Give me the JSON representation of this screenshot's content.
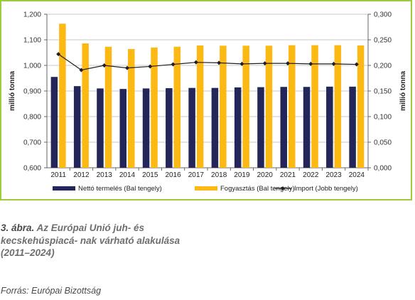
{
  "chart_data": {
    "type": "bar",
    "categories": [
      "2011",
      "2012",
      "2013",
      "2014",
      "2015",
      "2016",
      "2017",
      "2018",
      "2019",
      "2020",
      "2021",
      "2022",
      "2023",
      "2024"
    ],
    "series": [
      {
        "name": "Nettó termelés (Bal tengely)",
        "type": "bar",
        "axis": "left",
        "color": "#24265a",
        "values": [
          0.955,
          0.919,
          0.91,
          0.908,
          0.91,
          0.911,
          0.912,
          0.912,
          0.914,
          0.915,
          0.916,
          0.916,
          0.917,
          0.917
        ]
      },
      {
        "name": "Fogyasztás (Bal tengely)",
        "type": "bar",
        "axis": "left",
        "color": "#fdb913",
        "values": [
          1.163,
          1.086,
          1.073,
          1.064,
          1.07,
          1.073,
          1.078,
          1.077,
          1.077,
          1.077,
          1.079,
          1.079,
          1.079,
          1.078
        ]
      },
      {
        "name": "Import (Jobb tengely)",
        "type": "line",
        "axis": "right",
        "color": "#1f1f1f",
        "values": [
          0.222,
          0.191,
          0.2,
          0.195,
          0.198,
          0.202,
          0.206,
          0.205,
          0.203,
          0.204,
          0.204,
          0.203,
          0.203,
          0.202
        ]
      }
    ],
    "y_left": {
      "label": "millió tonna",
      "min": 0.6,
      "max": 1.2,
      "ticks": [
        "0,600",
        "0,700",
        "0,800",
        "0,900",
        "1,000",
        "1,100",
        "1,200"
      ]
    },
    "y_right": {
      "label": "millió tonna",
      "min": 0.0,
      "max": 0.3,
      "ticks": [
        "0,000",
        "0,050",
        "0,100",
        "0,150",
        "0,200",
        "0,250",
        "0,300"
      ]
    },
    "grid": true,
    "legend_position": "bottom"
  },
  "caption": {
    "number": "3. ábra.",
    "text": "Az Európai Unió juh- és kecskehúspiacá- nak várható alakulása (2011–2024)",
    "source": "Forrás: Európai Bizottság"
  }
}
